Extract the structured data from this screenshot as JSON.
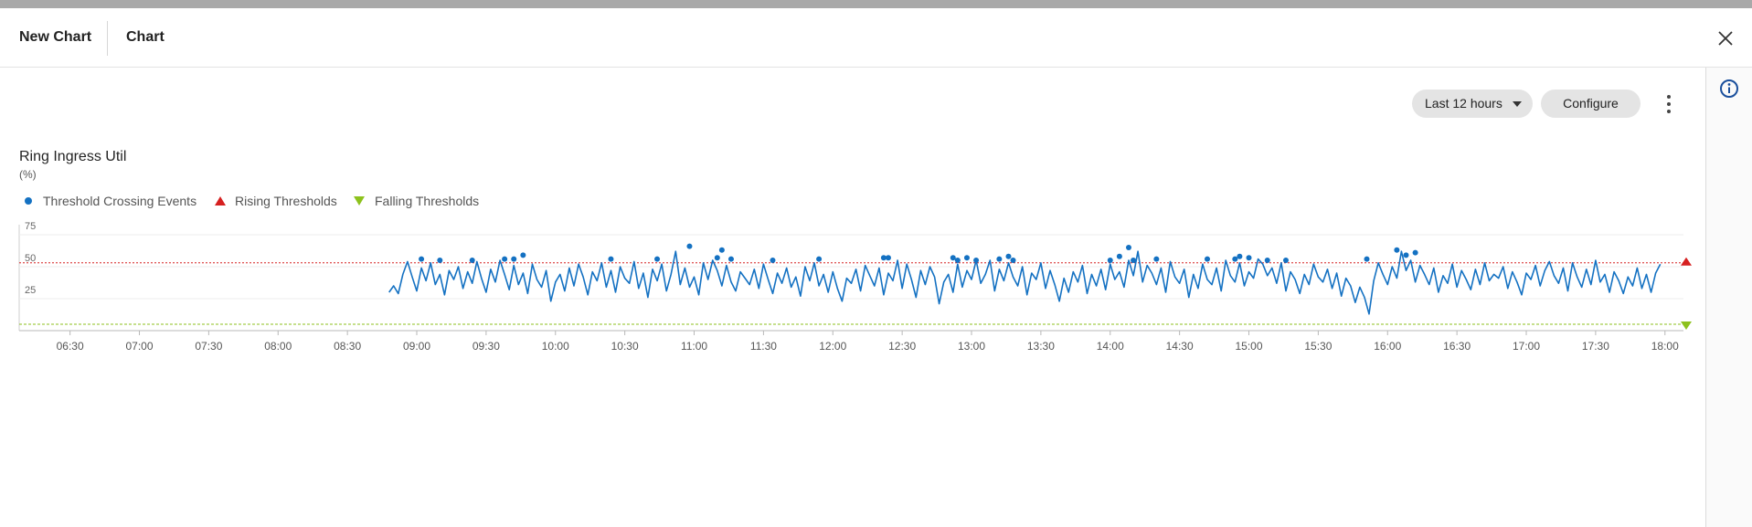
{
  "header": {
    "tab1": "New Chart",
    "tab2": "Chart"
  },
  "controls": {
    "range": "Last 12 hours",
    "configure": "Configure"
  },
  "icons": {
    "close": "close-icon",
    "info": "info-icon",
    "more": "more-vert-icon",
    "caret": "caret-down-icon"
  },
  "colors": {
    "series": "#1471c2",
    "rising": "#d62020",
    "falling": "#8dc21d",
    "accent": "#1a4f9c"
  },
  "chart_data": {
    "type": "line",
    "title": "Ring Ingress Util",
    "ylabel": "(%)",
    "legend": [
      "Threshold Crossing Events",
      "Rising Thresholds",
      "Falling Thresholds"
    ],
    "legend_position": "top-left",
    "ylim": [
      0,
      80
    ],
    "yticks": [
      25,
      50,
      75
    ],
    "xlim": [
      "06:08",
      "18:08"
    ],
    "xticks": [
      "06:30",
      "07:00",
      "07:30",
      "08:00",
      "08:30",
      "09:00",
      "09:30",
      "10:00",
      "10:30",
      "11:00",
      "11:30",
      "12:00",
      "12:30",
      "13:00",
      "13:30",
      "14:00",
      "14:30",
      "15:00",
      "15:30",
      "16:00",
      "16:30",
      "17:00",
      "17:30",
      "18:00"
    ],
    "rising_threshold": 53,
    "falling_threshold": 5,
    "series": [
      {
        "x": [
          "08:48",
          "08:50",
          "08:52",
          "08:54",
          "08:56",
          "08:58",
          "09:00",
          "09:02",
          "09:04",
          "09:06",
          "09:08",
          "09:10",
          "09:12",
          "09:14",
          "09:16",
          "09:18",
          "09:20",
          "09:22",
          "09:24",
          "09:26",
          "09:28",
          "09:30",
          "09:32",
          "09:34",
          "09:36",
          "09:38",
          "09:40",
          "09:42",
          "09:44",
          "09:46",
          "09:48",
          "09:50",
          "09:52",
          "09:54",
          "09:56",
          "09:58",
          "10:00",
          "10:02",
          "10:04",
          "10:06",
          "10:08",
          "10:10",
          "10:12",
          "10:14",
          "10:16",
          "10:18",
          "10:20",
          "10:22",
          "10:24",
          "10:26",
          "10:28",
          "10:30",
          "10:32",
          "10:34",
          "10:36",
          "10:38",
          "10:40",
          "10:42",
          "10:44",
          "10:46",
          "10:48",
          "10:50",
          "10:52",
          "10:54",
          "10:56",
          "10:58",
          "11:00",
          "11:02",
          "11:04",
          "11:06",
          "11:08",
          "11:10",
          "11:12",
          "11:14",
          "11:16",
          "11:18",
          "11:20",
          "11:22",
          "11:24",
          "11:26",
          "11:28",
          "11:30",
          "11:32",
          "11:34",
          "11:36",
          "11:38",
          "11:40",
          "11:42",
          "11:44",
          "11:46",
          "11:48",
          "11:50",
          "11:52",
          "11:54",
          "11:56",
          "11:58",
          "12:00",
          "12:02",
          "12:04",
          "12:06",
          "12:08",
          "12:10",
          "12:12",
          "12:14",
          "12:16",
          "12:18",
          "12:20",
          "12:22",
          "12:24",
          "12:26",
          "12:28",
          "12:30",
          "12:32",
          "12:34",
          "12:36",
          "12:38",
          "12:40",
          "12:42",
          "12:44",
          "12:46",
          "12:48",
          "12:50",
          "12:52",
          "12:54",
          "12:56",
          "12:58",
          "13:00",
          "13:02",
          "13:04",
          "13:06",
          "13:08",
          "13:10",
          "13:12",
          "13:14",
          "13:16",
          "13:18",
          "13:20",
          "13:22",
          "13:24",
          "13:26",
          "13:28",
          "13:30",
          "13:32",
          "13:34",
          "13:36",
          "13:38",
          "13:40",
          "13:42",
          "13:44",
          "13:46",
          "13:48",
          "13:50",
          "13:52",
          "13:54",
          "13:56",
          "13:58",
          "14:00",
          "14:02",
          "14:04",
          "14:06",
          "14:08",
          "14:10",
          "14:12",
          "14:14",
          "14:16",
          "14:18",
          "14:20",
          "14:22",
          "14:24",
          "14:26",
          "14:28",
          "14:30",
          "14:32",
          "14:34",
          "14:36",
          "14:38",
          "14:40",
          "14:42",
          "14:44",
          "14:46",
          "14:48",
          "14:50",
          "14:52",
          "14:54",
          "14:56",
          "14:58",
          "15:00",
          "15:02",
          "15:04",
          "15:06",
          "15:08",
          "15:10",
          "15:12",
          "15:14",
          "15:16",
          "15:18",
          "15:20",
          "15:22",
          "15:24",
          "15:26",
          "15:28",
          "15:30",
          "15:32",
          "15:34",
          "15:36",
          "15:38",
          "15:40",
          "15:42",
          "15:44",
          "15:46",
          "15:48",
          "15:50",
          "15:52",
          "15:54",
          "15:56",
          "15:58",
          "16:00",
          "16:02",
          "16:04",
          "16:06",
          "16:08",
          "16:10",
          "16:12",
          "16:14",
          "16:16",
          "16:18",
          "16:20",
          "16:22",
          "16:24",
          "16:26",
          "16:28",
          "16:30",
          "16:32",
          "16:34",
          "16:36",
          "16:38",
          "16:40",
          "16:42",
          "16:44",
          "16:46",
          "16:48",
          "16:50",
          "16:52",
          "16:54",
          "16:56",
          "16:58",
          "17:00",
          "17:02",
          "17:04",
          "17:06",
          "17:08",
          "17:10",
          "17:12",
          "17:14",
          "17:16",
          "17:18",
          "17:20",
          "17:22",
          "17:24",
          "17:26",
          "17:28",
          "17:30",
          "17:32",
          "17:34",
          "17:36",
          "17:38",
          "17:40",
          "17:42",
          "17:44",
          "17:46",
          "17:48",
          "17:50",
          "17:52",
          "17:54",
          "17:56",
          "17:58"
        ],
        "y": [
          30,
          35,
          29,
          44,
          54,
          42,
          31,
          49,
          39,
          53,
          36,
          44,
          28,
          47,
          40,
          50,
          33,
          46,
          37,
          54,
          41,
          30,
          48,
          38,
          55,
          44,
          32,
          51,
          36,
          45,
          29,
          52,
          40,
          34,
          47,
          23,
          38,
          44,
          31,
          49,
          35,
          52,
          42,
          28,
          46,
          39,
          53,
          34,
          47,
          30,
          50,
          41,
          37,
          54,
          33,
          45,
          26,
          48,
          39,
          52,
          31,
          44,
          62,
          36,
          49,
          34,
          42,
          28,
          53,
          40,
          55,
          47,
          35,
          51,
          38,
          31,
          46,
          41,
          36,
          48,
          33,
          52,
          40,
          29,
          45,
          37,
          49,
          34,
          42,
          27,
          50,
          39,
          53,
          35,
          44,
          30,
          46,
          33,
          23,
          41,
          37,
          48,
          31,
          51,
          43,
          35,
          49,
          28,
          45,
          39,
          55,
          33,
          52,
          40,
          26,
          47,
          36,
          50,
          42,
          21,
          38,
          44,
          30,
          52,
          34,
          47,
          40,
          55,
          37,
          44,
          55,
          31,
          48,
          39,
          53,
          42,
          35,
          50,
          28,
          45,
          40,
          53,
          33,
          47,
          36,
          23,
          41,
          30,
          46,
          38,
          51,
          29,
          44,
          35,
          48,
          32,
          52,
          40,
          46,
          34,
          55,
          43,
          62,
          38,
          51,
          45,
          36,
          49,
          30,
          54,
          42,
          37,
          48,
          26,
          44,
          33,
          52,
          40,
          36,
          49,
          31,
          55,
          43,
          38,
          53,
          35,
          46,
          41,
          56,
          52,
          43,
          49,
          37,
          53,
          31,
          46,
          40,
          29,
          44,
          36,
          52,
          42,
          38,
          48,
          33,
          45,
          27,
          41,
          35,
          22,
          34,
          26,
          13,
          39,
          53,
          44,
          36,
          50,
          41,
          62,
          47,
          55,
          38,
          51,
          44,
          36,
          49,
          30,
          43,
          37,
          52,
          34,
          47,
          40,
          32,
          48,
          36,
          53,
          39,
          44,
          41,
          50,
          33,
          46,
          38,
          28,
          45,
          40,
          51,
          35,
          47,
          54,
          43,
          37,
          49,
          31,
          53,
          42,
          34,
          48,
          36,
          55,
          38,
          44,
          30,
          46,
          39,
          29,
          42,
          35,
          49,
          33,
          44,
          30,
          45,
          52
        ]
      }
    ],
    "events": {
      "x": [
        "09:02",
        "09:10",
        "09:24",
        "09:38",
        "09:42",
        "09:46",
        "10:24",
        "10:44",
        "10:58",
        "11:10",
        "11:12",
        "11:16",
        "11:34",
        "11:54",
        "12:22",
        "12:24",
        "12:52",
        "12:54",
        "12:58",
        "13:02",
        "13:12",
        "13:16",
        "13:18",
        "14:00",
        "14:04",
        "14:08",
        "14:10",
        "14:20",
        "14:42",
        "14:54",
        "14:56",
        "15:00",
        "15:08",
        "15:16",
        "15:51",
        "16:04",
        "16:08",
        "16:12"
      ],
      "y": [
        56,
        55,
        55,
        56,
        56,
        59,
        56,
        56,
        66,
        57,
        63,
        56,
        55,
        56,
        57,
        57,
        57,
        55,
        57,
        55,
        56,
        58,
        55,
        55,
        58,
        65,
        55,
        56,
        56,
        56,
        58,
        57,
        55,
        55,
        56,
        63,
        59,
        61
      ]
    }
  }
}
